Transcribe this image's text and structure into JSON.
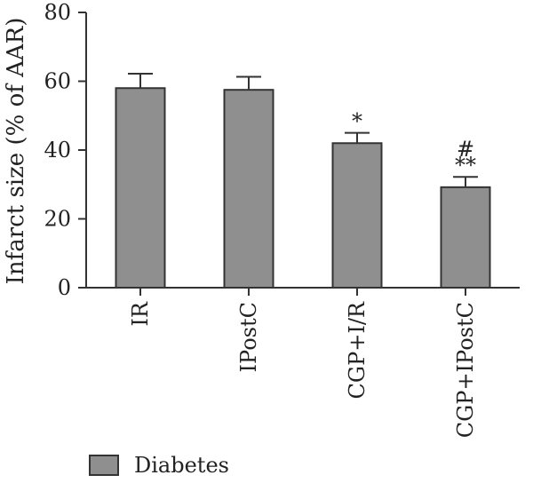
{
  "chart_data": {
    "type": "bar",
    "categories": [
      "IR",
      "IPostC",
      "CGP+I/R",
      "CGP+IPostC"
    ],
    "series": [
      {
        "name": "Diabetes",
        "values": [
          58,
          57.5,
          42,
          29.2
        ],
        "errors": [
          4.2,
          3.8,
          3,
          3
        ]
      }
    ],
    "annotations": [
      "",
      "",
      "*",
      "**\n#"
    ],
    "ylabel": "Infarct size (% of AAR)",
    "xlabel": "",
    "ylim": [
      0,
      80
    ],
    "yticks": [
      0,
      20,
      40,
      60,
      80
    ],
    "grid": false,
    "legend_position": "bottom-left",
    "colors": {
      "bar": "#8f8f8f",
      "edge": "#333333",
      "axis": "#333333"
    }
  }
}
